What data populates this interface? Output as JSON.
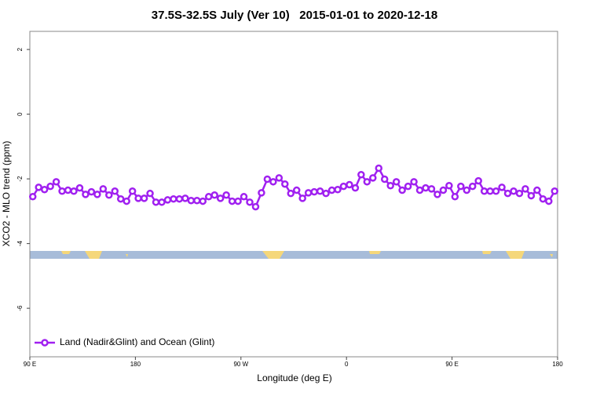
{
  "chart_data": {
    "type": "line",
    "title": "37.5S-32.5S July (Ver 10)   2015-01-01 to 2020-12-18",
    "xlabel": "Longitude (deg E)",
    "ylabel": "XCO2 - MLO trend (ppm)",
    "xlim": [
      90,
      540
    ],
    "ylim": [
      -7.5,
      2.56
    ],
    "xticks": [
      {
        "value": 90,
        "label": "90 E"
      },
      180,
      {
        "value": 270,
        "label": "90 W"
      },
      {
        "value": 360,
        "label": "0"
      },
      {
        "value": 450,
        "label": "90 E"
      },
      {
        "value": 540,
        "label": "180"
      }
    ],
    "yticks": [
      -6,
      -4,
      -2,
      0,
      2
    ],
    "legend": "bottom-left",
    "x": [
      92.5,
      97.5,
      102.5,
      107.5,
      112.5,
      117.5,
      122.5,
      127.5,
      132.5,
      137.5,
      142.5,
      147.5,
      152.5,
      157.5,
      162.5,
      167.5,
      172.5,
      177.5,
      182.5,
      187.5,
      192.5,
      197.5,
      202.5,
      207.5,
      212.5,
      217.5,
      222.5,
      227.5,
      232.5,
      237.5,
      242.5,
      247.5,
      252.5,
      257.5,
      262.5,
      267.5,
      272.5,
      277.5,
      282.5,
      287.5,
      292.5,
      297.5,
      302.5,
      307.5,
      312.5,
      317.5,
      322.5,
      327.5,
      332.5,
      337.5,
      342.5,
      347.5,
      352.5,
      357.5,
      362.5,
      367.5,
      372.5,
      377.5,
      382.5,
      387.5,
      392.5,
      397.5,
      402.5,
      407.5,
      412.5,
      417.5,
      422.5,
      427.5,
      432.5,
      437.5,
      442.5,
      447.5,
      452.5,
      457.5,
      462.5,
      467.5,
      472.5,
      477.5,
      482.5,
      487.5,
      492.5,
      497.5,
      502.5,
      507.5,
      512.5,
      517.5,
      522.5,
      527.5,
      532.5,
      537.5
    ],
    "series": [
      {
        "name": "Land (Nadir&Glint) and Ocean (Glint)",
        "color": "#a020f0",
        "values": [
          -2.55,
          -2.26,
          -2.33,
          -2.23,
          -2.09,
          -2.38,
          -2.35,
          -2.38,
          -2.28,
          -2.48,
          -2.4,
          -2.48,
          -2.31,
          -2.5,
          -2.38,
          -2.62,
          -2.69,
          -2.38,
          -2.6,
          -2.6,
          -2.45,
          -2.72,
          -2.72,
          -2.65,
          -2.62,
          -2.62,
          -2.6,
          -2.67,
          -2.67,
          -2.69,
          -2.55,
          -2.5,
          -2.6,
          -2.5,
          -2.69,
          -2.69,
          -2.55,
          -2.72,
          -2.86,
          -2.43,
          -2.01,
          -2.09,
          -1.97,
          -2.16,
          -2.45,
          -2.35,
          -2.6,
          -2.43,
          -2.4,
          -2.38,
          -2.45,
          -2.35,
          -2.33,
          -2.23,
          -2.18,
          -2.28,
          -1.87,
          -2.09,
          -1.97,
          -1.67,
          -2.01,
          -2.21,
          -2.09,
          -2.35,
          -2.23,
          -2.09,
          -2.35,
          -2.28,
          -2.31,
          -2.48,
          -2.35,
          -2.21,
          -2.55,
          -2.23,
          -2.35,
          -2.23,
          -2.06,
          -2.38,
          -2.38,
          -2.38,
          -2.26,
          -2.45,
          -2.38,
          -2.45,
          -2.31,
          -2.52,
          -2.35,
          -2.62,
          -2.69,
          -2.38
        ]
      }
    ]
  }
}
